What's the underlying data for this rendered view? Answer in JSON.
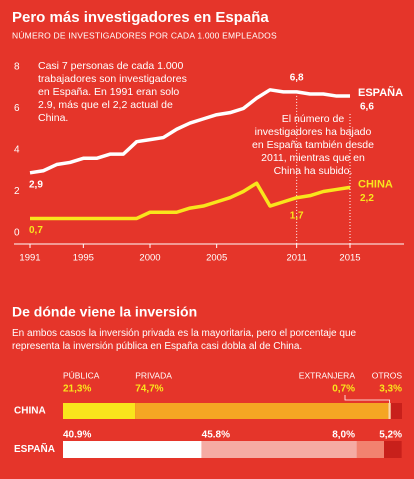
{
  "chart_data": [
    {
      "type": "line",
      "title": "Pero más investigadores en España",
      "subtitle": "NÚMERO DE INVESTIGADORES POR CADA 1.000 EMPLEADOS",
      "x": [
        1991,
        1992,
        1993,
        1994,
        1995,
        1996,
        1997,
        1998,
        1999,
        2000,
        2001,
        2002,
        2003,
        2004,
        2005,
        2006,
        2007,
        2008,
        2009,
        2010,
        2011,
        2012,
        2013,
        2014,
        2015
      ],
      "xlim": [
        1991,
        2015
      ],
      "xticks": [
        1991,
        1995,
        2000,
        2005,
        2011,
        2015
      ],
      "ylim": [
        0,
        8
      ],
      "yticks": [
        0,
        2,
        4,
        6,
        8
      ],
      "grid": false,
      "series": [
        {
          "name": "ESPAÑA",
          "color": "#ffffff",
          "values": [
            2.9,
            3.0,
            3.3,
            3.4,
            3.6,
            3.6,
            3.8,
            3.8,
            4.4,
            4.5,
            4.6,
            5.0,
            5.3,
            5.5,
            5.7,
            5.8,
            6.0,
            6.5,
            6.9,
            6.8,
            6.8,
            6.7,
            6.7,
            6.6,
            6.6
          ],
          "value_labels": [
            "2,9",
            null,
            null,
            null,
            null,
            null,
            null,
            null,
            null,
            null,
            null,
            null,
            null,
            null,
            null,
            null,
            null,
            null,
            null,
            null,
            "6,8",
            null,
            null,
            null,
            "6,6"
          ]
        },
        {
          "name": "CHINA",
          "color": "#f9e51c",
          "values": [
            0.7,
            0.7,
            0.7,
            0.7,
            0.7,
            0.7,
            0.7,
            0.7,
            0.7,
            1.0,
            1.0,
            1.0,
            1.2,
            1.3,
            1.5,
            1.7,
            2.0,
            2.4,
            1.3,
            1.5,
            1.7,
            1.8,
            2.0,
            2.1,
            2.2
          ],
          "value_labels": [
            "0,7",
            null,
            null,
            null,
            null,
            null,
            null,
            null,
            null,
            null,
            null,
            null,
            null,
            null,
            null,
            null,
            null,
            null,
            null,
            null,
            "1,7",
            null,
            null,
            null,
            "2,2"
          ]
        }
      ],
      "annotations": [
        "Casi 7 personas de cada 1.000 trabajadores son investigadores en España. En 1991 eran solo 2.9, más que el 2,2 actual de China.",
        "El número de investigadores ha bajado en España también desde 2011, mientras que en China ha subido."
      ]
    },
    {
      "type": "stacked_bar",
      "title": "De dónde viene la inversión",
      "subtitle": "En ambos casos la inversión privada es la mayoritaria, pero el porcentaje que representa la inversión pública en España casi dobla al de China.",
      "categories": [
        "CHINA",
        "ESPAÑA"
      ],
      "xlim": [
        0,
        100
      ],
      "series": [
        {
          "name": "PÚBLICA",
          "colors": [
            "#f9e51c",
            "#ffffff"
          ],
          "values": [
            21.3,
            40.9
          ],
          "value_labels": [
            "21,3%",
            "40.9%"
          ]
        },
        {
          "name": "PRIVADA",
          "colors": [
            "#f5a623",
            "#f5aba3"
          ],
          "values": [
            74.7,
            45.8
          ],
          "value_labels": [
            "74,7%",
            "45.8%"
          ]
        },
        {
          "name": "EXTRANJERA",
          "colors": [
            "#fad9a8",
            "#f2826f"
          ],
          "values": [
            0.7,
            8.0
          ],
          "value_labels": [
            "0,7%",
            "8,0%"
          ]
        },
        {
          "name": "OTROS",
          "colors": [
            "#c8201b",
            "#c8201b"
          ],
          "values": [
            3.3,
            5.2
          ],
          "value_labels": [
            "3,3%",
            "5,2%"
          ]
        }
      ]
    }
  ]
}
